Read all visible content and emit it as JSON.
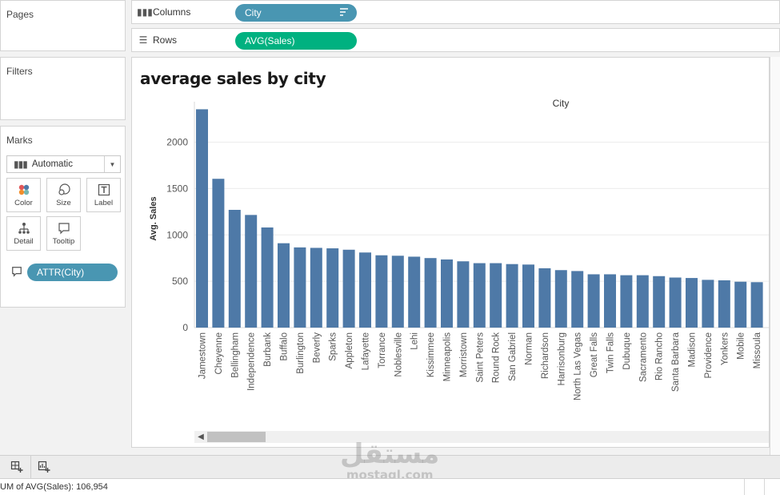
{
  "left_panel": {
    "pages_label": "Pages",
    "filters_label": "Filters",
    "marks_label": "Marks",
    "mark_type": "Automatic",
    "mark_buttons": [
      {
        "label": "Color",
        "icon": "color-dots-icon"
      },
      {
        "label": "Size",
        "icon": "size-circles-icon"
      },
      {
        "label": "Label",
        "icon": "text-label-icon"
      },
      {
        "label": "Detail",
        "icon": "detail-tree-icon"
      },
      {
        "label": "Tooltip",
        "icon": "tooltip-bubble-icon"
      }
    ],
    "attr_pill": "ATTR(City)"
  },
  "shelves": {
    "columns_label": "Columns",
    "columns_pill": "City",
    "rows_label": "Rows",
    "rows_pill": "AVG(Sales)"
  },
  "viz": {
    "title": "average sales by city"
  },
  "colors": {
    "bar": "#4e79a7",
    "pill_dimension": "#4996b2",
    "pill_measure": "#00b180"
  },
  "chart_data": {
    "type": "bar",
    "xlabel": "City",
    "ylabel": "Avg. Sales",
    "ylim": [
      0,
      2350
    ],
    "yticks": [
      0,
      500,
      1000,
      1500,
      2000
    ],
    "grid": true,
    "categories": [
      "Jamestown",
      "Cheyenne",
      "Bellingham",
      "Independence",
      "Burbank",
      "Buffalo",
      "Burlington",
      "Beverly",
      "Sparks",
      "Appleton",
      "Lafayette",
      "Torrance",
      "Noblesville",
      "Lehi",
      "Kissimmee",
      "Minneapolis",
      "Morristown",
      "Saint Peters",
      "Round Rock",
      "San Gabriel",
      "Norman",
      "Richardson",
      "Harrisonburg",
      "North Las Vegas",
      "Great Falls",
      "Twin Falls",
      "Dubuque",
      "Sacramento",
      "Rio Rancho",
      "Santa Barbara",
      "Madison",
      "Providence",
      "Yonkers",
      "Mobile",
      "Missoula"
    ],
    "values": [
      2355,
      1605,
      1270,
      1215,
      1080,
      910,
      865,
      860,
      855,
      840,
      810,
      780,
      775,
      765,
      750,
      735,
      715,
      695,
      695,
      685,
      680,
      640,
      620,
      610,
      575,
      575,
      565,
      565,
      555,
      540,
      535,
      515,
      510,
      495,
      490
    ]
  },
  "status": {
    "text": "UM of AVG(Sales): 106,954"
  },
  "watermark": {
    "main": "مستقل",
    "sub": "mostaql.com"
  }
}
